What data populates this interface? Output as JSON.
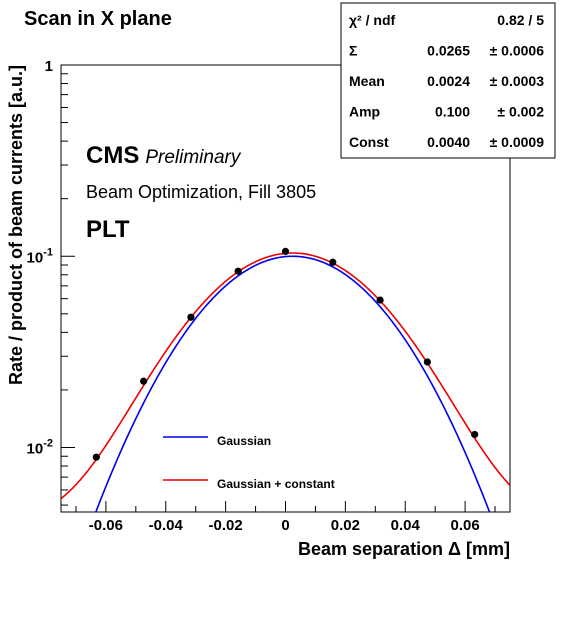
{
  "chart_data": {
    "type": "scatter",
    "title": "Scan in X plane",
    "xlabel": "Beam separation Δ [mm]",
    "ylabel": "Rate / product of beam currents [a.u.]",
    "xlim": [
      -0.075,
      0.075
    ],
    "ylim": [
      0.0046,
      1
    ],
    "yscale": "log",
    "grid": false,
    "x_ticks": [
      "-0.06",
      "-0.04",
      "-0.02",
      "0",
      "0.02",
      "0.04",
      "0.06"
    ],
    "x_tick_values": [
      -0.06,
      -0.04,
      -0.02,
      0,
      0.02,
      0.04,
      0.06
    ],
    "y_ticks": [
      {
        "value": 0.01,
        "base": "10",
        "exp": "-2"
      },
      {
        "value": 0.1,
        "base": "10",
        "exp": "-1"
      },
      {
        "value": 1,
        "base": "1",
        "exp": ""
      }
    ],
    "points": {
      "x": [
        -0.0632,
        -0.0474,
        -0.0316,
        -0.0158,
        0.0,
        0.0158,
        0.0316,
        0.0474,
        0.0632
      ],
      "y": [
        0.0089,
        0.0222,
        0.048,
        0.0835,
        0.106,
        0.093,
        0.059,
        0.028,
        0.0117
      ]
    },
    "series": [
      {
        "name": "Gaussian",
        "color": "#0000ee",
        "model": "gaussian",
        "amp": 0.1,
        "mean": 0.0024,
        "sigma": 0.0265,
        "const": 0
      },
      {
        "name": "Gaussian + constant",
        "color": "#ee0000",
        "model": "gaussian+constant",
        "amp": 0.1,
        "mean": 0.0024,
        "sigma": 0.0265,
        "const": 0.004
      }
    ],
    "annotations": {
      "experiment": "CMS",
      "status": "Preliminary",
      "fill": "Beam Optimization, Fill 3805",
      "detector": "PLT"
    },
    "stats_box": [
      {
        "label": "χ² / ndf",
        "value": "0.82 / 5",
        "error": ""
      },
      {
        "label": "Σ",
        "value": "0.0265",
        "error": "± 0.0006"
      },
      {
        "label": "Mean",
        "value": "0.0024",
        "error": "± 0.0003"
      },
      {
        "label": "Amp",
        "value": "0.100",
        "error": "± 0.002"
      },
      {
        "label": "Const",
        "value": "0.0040",
        "error": "± 0.0009"
      }
    ],
    "legend_position": "bottom-center"
  }
}
